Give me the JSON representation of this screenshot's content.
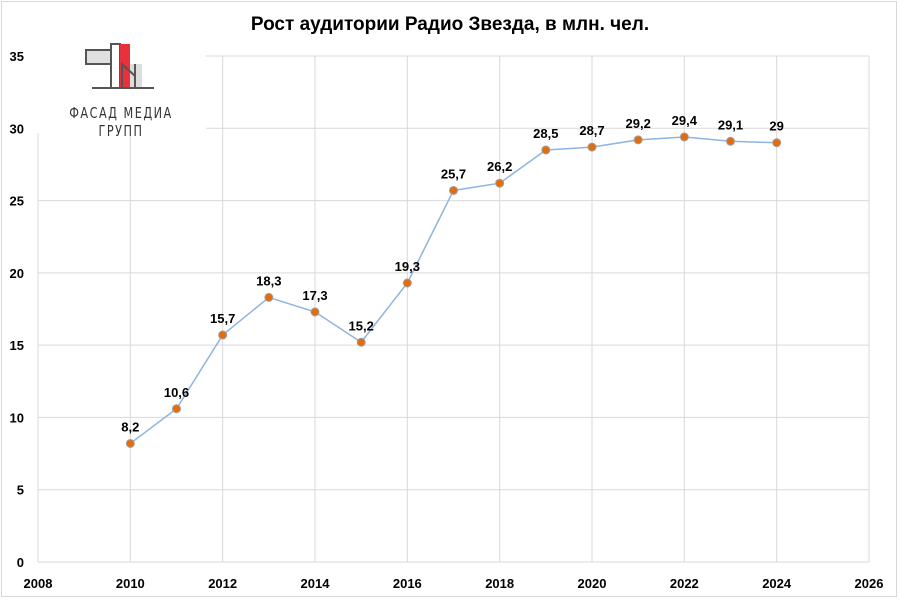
{
  "chart_data": {
    "type": "line",
    "title": "Рост аудитории Радио Звезда, в млн. чел.",
    "xlabel": "",
    "ylabel": "",
    "x": [
      2010,
      2011,
      2012,
      2013,
      2014,
      2015,
      2016,
      2017,
      2018,
      2019,
      2020,
      2021,
      2022,
      2023,
      2024
    ],
    "values": [
      8.2,
      10.6,
      15.7,
      18.3,
      17.3,
      15.2,
      19.3,
      25.7,
      26.2,
      28.5,
      28.7,
      29.2,
      29.4,
      29.1,
      29
    ],
    "data_labels": [
      "8,2",
      "10,6",
      "15,7",
      "18,3",
      "17,3",
      "15,2",
      "19,3",
      "25,7",
      "26,2",
      "28,5",
      "28,7",
      "29,2",
      "29,4",
      "29,1",
      "29"
    ],
    "xlim": [
      2008,
      2026
    ],
    "ylim": [
      0,
      35
    ],
    "x_ticks": [
      "2008",
      "2010",
      "2012",
      "2014",
      "2016",
      "2018",
      "2020",
      "2022",
      "2024",
      "2026"
    ],
    "y_ticks": [
      "0",
      "5",
      "10",
      "15",
      "20",
      "25",
      "30",
      "35"
    ],
    "grid": true,
    "line_color": "#8db4e2",
    "marker_color": "#e46c0a"
  },
  "logo": {
    "text": "ФАСАД МЕДИА ГРУПП",
    "accent_color": "#e8313a"
  }
}
